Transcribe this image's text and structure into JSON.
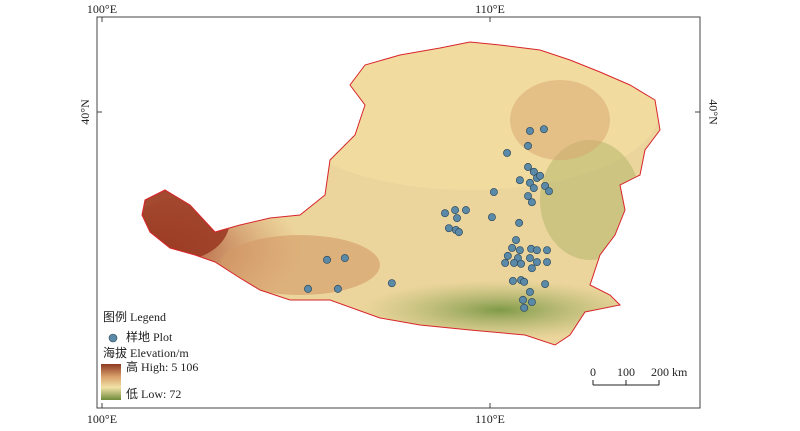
{
  "axes": {
    "top": [
      {
        "value": 100,
        "label": "100°E"
      },
      {
        "value": 110,
        "label": "110°E"
      }
    ],
    "bottom": [
      {
        "value": 100,
        "label": "100°E"
      },
      {
        "value": 110,
        "label": "110°E"
      }
    ],
    "left": [
      {
        "value": 40,
        "label": "40°N"
      }
    ],
    "right": [
      {
        "value": 40,
        "label": "40°N"
      }
    ]
  },
  "legend": {
    "title": "图例 Legend",
    "plot": "样地 Plot",
    "elevation": "海拔 Elevation/m",
    "high": "高 High: 5 106",
    "low": "低 Low: 72"
  },
  "scale_bar": {
    "ticks": [
      0,
      100,
      {
        "value": 200,
        "label": "200 km"
      }
    ]
  },
  "plots": {
    "lon": [
      111.03,
      111.39,
      110.98,
      110.98,
      111.13,
      111.21,
      111.29,
      110.77,
      111.03,
      111.13,
      111.42,
      111.52,
      110.98,
      111.08,
      110.44,
      110.1,
      108.84,
      109.1,
      109.38,
      109.15,
      108.94,
      109.12,
      109.2,
      110.05,
      110.75,
      110.67,
      110.57,
      110.77,
      110.46,
      110.72,
      110.39,
      110.62,
      110.8,
      111.06,
      111.21,
      111.47,
      111.03,
      111.21,
      111.47,
      111.08,
      110.8,
      110.59,
      110.88,
      111.42,
      111.03,
      110.85,
      111.08,
      110.88,
      106.26,
      105.8,
      107.47,
      105.31,
      106.08
    ],
    "lat": [
      39.57,
      39.61,
      39.23,
      38.75,
      38.64,
      38.5,
      38.55,
      38.45,
      38.39,
      38.27,
      38.32,
      38.2,
      38.09,
      37.95,
      39.07,
      38.18,
      37.7,
      37.77,
      37.77,
      37.59,
      37.36,
      37.32,
      37.27,
      37.61,
      37.48,
      37.09,
      36.91,
      36.86,
      36.73,
      36.68,
      36.57,
      36.57,
      36.55,
      36.89,
      36.86,
      36.86,
      36.68,
      36.59,
      36.59,
      36.45,
      36.18,
      36.16,
      36.14,
      36.09,
      35.91,
      35.73,
      35.68,
      35.55,
      36.68,
      36.64,
      36.11,
      35.98,
      35.98
    ]
  }
}
